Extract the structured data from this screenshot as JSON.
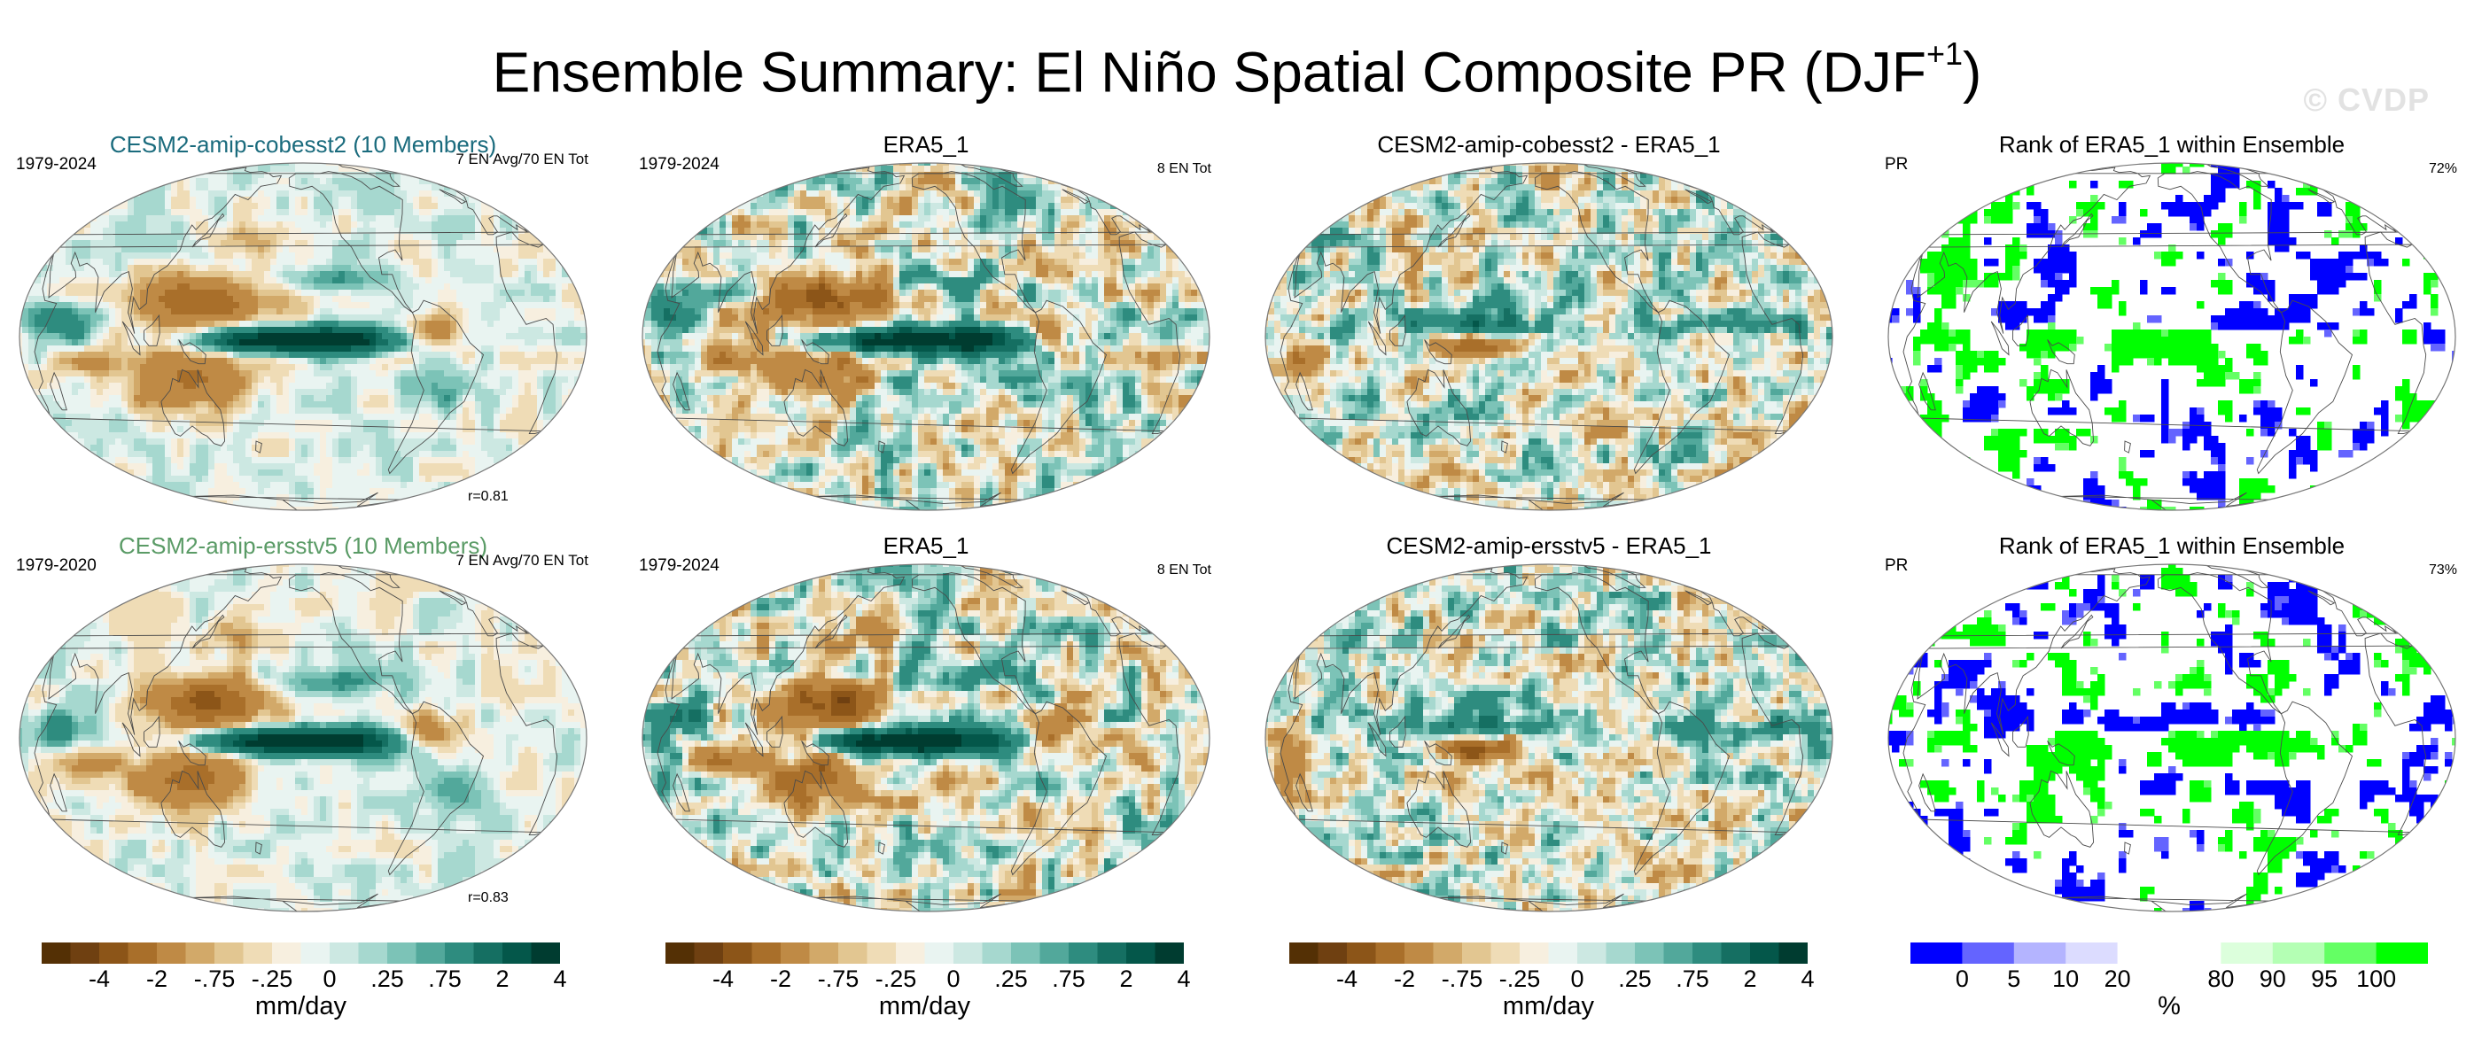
{
  "title": "Ensemble Summary: El Niño Spatial Composite PR (DJF",
  "title_sup": "+1",
  "title_close": ")",
  "watermark": "© CVDP",
  "rows": [
    {
      "panels": [
        {
          "kind": "ens",
          "title": "CESM2-amip-cobesst2 (10 Members)",
          "title_color": "#1a6b7d",
          "left": "1979-2024",
          "right": "7 EN Avg/70 EN Tot",
          "bottom_right": "r=0.81"
        },
        {
          "kind": "obs",
          "title": "ERA5_1",
          "left": "1979-2024",
          "right": "8 EN Tot"
        },
        {
          "kind": "diff",
          "title": "CESM2-amip-cobesst2 - ERA5_1"
        },
        {
          "kind": "rank",
          "title": "Rank of ERA5_1 within Ensemble",
          "left": "PR",
          "right": "72%"
        }
      ]
    },
    {
      "panels": [
        {
          "kind": "ens",
          "title": "CESM2-amip-ersstv5 (10 Members)",
          "title_color": "#5a9b66",
          "left": "1979-2020",
          "right": "7 EN Avg/70 EN Tot",
          "bottom_right": "r=0.83"
        },
        {
          "kind": "obs",
          "title": "ERA5_1",
          "left": "1979-2024",
          "right": "8 EN Tot"
        },
        {
          "kind": "diff",
          "title": "CESM2-amip-ersstv5 - ERA5_1"
        },
        {
          "kind": "rank",
          "title": "Rank of ERA5_1 within Ensemble",
          "left": "PR",
          "right": "73%"
        }
      ]
    }
  ],
  "colorbars": [
    {
      "labels": [
        "-4",
        "-2",
        "-.75",
        "-.25",
        "0",
        ".25",
        ".75",
        "2",
        "4"
      ],
      "unit": "mm/day"
    },
    {
      "labels": [
        "-4",
        "-2",
        "-.75",
        "-.25",
        "0",
        ".25",
        ".75",
        "2",
        "4"
      ],
      "unit": "mm/day"
    },
    {
      "labels": [
        "-4",
        "-2",
        "-.75",
        "-.25",
        "0",
        ".25",
        ".75",
        "2",
        "4"
      ],
      "unit": "mm/day"
    },
    {
      "labels": [
        "0",
        "5",
        "10",
        "20",
        "80",
        "90",
        "95",
        "100"
      ],
      "unit": "%"
    }
  ],
  "colors": {
    "brown_teal": [
      "#543005",
      "#6f4011",
      "#8c5518",
      "#a96f2a",
      "#bf8a45",
      "#d2a969",
      "#e2c691",
      "#efdcb6",
      "#f7efdf",
      "#e9f4f1",
      "#cce8e2",
      "#a6d8cf",
      "#7cc3b7",
      "#52a89b",
      "#2e8c7f",
      "#156f62",
      "#04574a",
      "#003c30"
    ],
    "rank": [
      "#0000ff",
      "#6464ff",
      "#b4b4ff",
      "#dcdcff",
      "#ffffff",
      "#ffffff",
      "#dcffdc",
      "#b4ffb4",
      "#64ff64",
      "#00ff00"
    ]
  }
}
